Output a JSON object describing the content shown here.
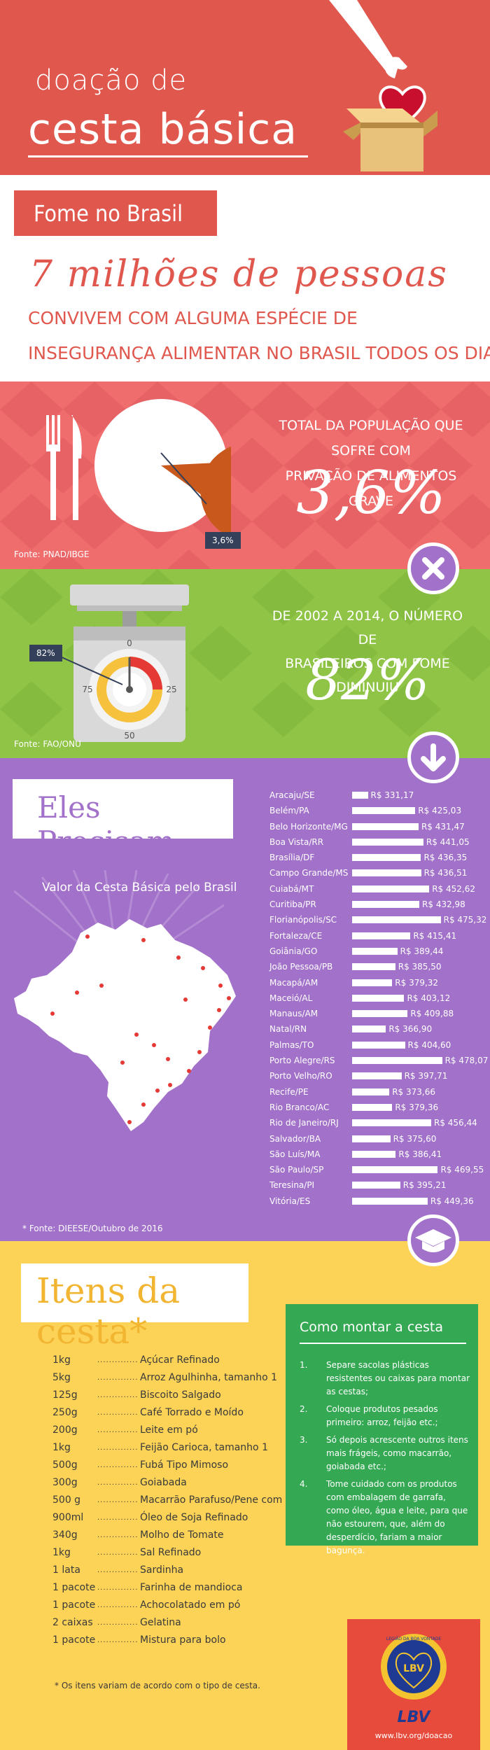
{
  "header": {
    "line1": "doação de",
    "line2": "cesta básica"
  },
  "hunger": {
    "title": "Fome no Brasil",
    "headline": "7 milhões de pessoas",
    "sub_line1": "CONVIVEM COM ALGUMA ESPÉCIE DE",
    "sub_line2": "INSEGURANÇA ALIMENTAR NO BRASIL TODOS OS DIAS"
  },
  "deprivation": {
    "text_line1": "TOTAL DA POPULAÇÃO QUE SOFRE COM",
    "text_line2": "PRIVAÇÃO DE ALIMENTOS GRAVE",
    "value": "3,6%",
    "tag": "3,6%",
    "source": "Fonte: PNAD/IBGE",
    "percent": 3.6
  },
  "decline": {
    "text_line1": "DE 2002 A 2014, O NÚMERO DE",
    "text_line2": "BRASILEIROS COM FOME DIMINUIU",
    "value": "82%",
    "tag": "82%",
    "source": "Fonte: FAO/ONU",
    "scale_labels": [
      "0",
      "25",
      "50",
      "75"
    ],
    "percent": 82
  },
  "need": {
    "title": "Eles Precisam",
    "chart_title": "Valor da Cesta Básica pelo Brasil",
    "source": "* Fonte: DIEESE/Outubro de 2016"
  },
  "chart_data": {
    "type": "bar",
    "title": "Valor da Cesta Básica pelo Brasil",
    "xlabel": "",
    "ylabel": "",
    "categories": [
      "Aracaju/SE",
      "Belém/PA",
      "Belo Horizonte/MG",
      "Boa Vista/RR",
      "Brasília/DF",
      "Campo Grande/MS",
      "Cuiabá/MT",
      "Curitiba/PR",
      "Florianópolis/SC",
      "Fortaleza/CE",
      "Goiânia/GO",
      "João Pessoa/PB",
      "Macapá/AM",
      "Maceió/AL",
      "Manaus/AM",
      "Natal/RN",
      "Palmas/TO",
      "Porto Alegre/RS",
      "Porto Velho/RO",
      "Recife/PE",
      "Rio Branco/AC",
      "Rio de Janeiro/RJ",
      "Salvador/BA",
      "São Luís/MA",
      "São Paulo/SP",
      "Teresina/PI",
      "Vitória/ES"
    ],
    "values": [
      331.17,
      425.03,
      431.47,
      441.05,
      436.35,
      436.51,
      452.62,
      432.98,
      475.32,
      415.41,
      389.44,
      385.5,
      379.32,
      403.12,
      409.88,
      366.9,
      404.6,
      478.07,
      397.71,
      373.66,
      379.36,
      456.44,
      375.6,
      386.41,
      469.55,
      395.21,
      449.36
    ],
    "labels": [
      "R$ 331,17",
      "R$ 425,03",
      "R$ 431,47",
      "R$ 441,05",
      "R$ 436,35",
      "R$ 436,51",
      "R$ 452,62",
      "R$ 432,98",
      "R$ 475,32",
      "R$ 415,41",
      "R$ 389,44",
      "R$ 385,50",
      "R$ 379,32",
      "R$ 403,12",
      "R$ 409,88",
      "R$ 366,90",
      "R$ 404,60",
      "R$ 478,07",
      "R$ 397,71",
      "R$ 373,66",
      "R$ 379,36",
      "R$ 456,44",
      "R$ 375,60",
      "R$ 386,41",
      "R$ 469,55",
      "R$ 395,21",
      "R$ 449,36"
    ],
    "ylim": [
      300,
      480
    ]
  },
  "basket": {
    "title": "Itens da cesta*",
    "footnote": "* Os itens variam de acordo com o tipo de cesta.",
    "items": [
      {
        "q": "1kg",
        "n": "Açúcar Refinado"
      },
      {
        "q": "5kg",
        "n": "Arroz Agulhinha, tamanho 1"
      },
      {
        "q": "125g",
        "n": "Biscoito Salgado"
      },
      {
        "q": "250g",
        "n": "Café Torrado e Moído"
      },
      {
        "q": "200g",
        "n": "Leite em pó"
      },
      {
        "q": "1kg",
        "n": "Feijão Carioca, tamanho 1"
      },
      {
        "q": "500g",
        "n": "Fubá Tipo Mimoso"
      },
      {
        "q": "300g",
        "n": "Goiabada"
      },
      {
        "q": "500 g",
        "n": "Macarrão Parafuso/Pene com Ovos"
      },
      {
        "q": "900ml",
        "n": "Óleo de Soja Refinado"
      },
      {
        "q": "340g",
        "n": "Molho de Tomate"
      },
      {
        "q": "1kg",
        "n": "Sal Refinado"
      },
      {
        "q": "1 lata",
        "n": "Sardinha"
      },
      {
        "q": "1 pacote",
        "n": "Farinha de mandioca"
      },
      {
        "q": "1 pacote",
        "n": "Achocolatado em pó"
      },
      {
        "q": "2 caixas",
        "n": "Gelatina"
      },
      {
        "q": "1 pacote",
        "n": "Mistura para bolo"
      }
    ],
    "dots": "......................"
  },
  "how_to": {
    "title": "Como montar a cesta",
    "steps": [
      {
        "num": "1.",
        "text": "Separe sacolas plásticas resistentes ou caixas para montar as cestas;"
      },
      {
        "num": "2.",
        "text": "Coloque produtos pesados primeiro: arroz, feijão etc.;"
      },
      {
        "num": "3.",
        "text": "Só depois acrescente outros itens mais frágeis, como macarrão, goiabada etc.;"
      },
      {
        "num": "4.",
        "text": "Tome cuidado com os produtos com embalagem de garrafa, como óleo, água e leite, para que não estourem, que, além do desperdício, fariam a maior bagunça."
      }
    ]
  },
  "lbv": {
    "seal_text": "LBV",
    "seal_ring": "LEGIÃO DA BOA VONTADE",
    "logo_text": "LBV",
    "url": "www.lbv.org/doacao"
  },
  "colors": {
    "coral": "#e0574e",
    "pink": "#ef6d6d",
    "green": "#8fc447",
    "purple": "#a271c9",
    "yellow": "#fcd257",
    "dark": "#34405a"
  }
}
